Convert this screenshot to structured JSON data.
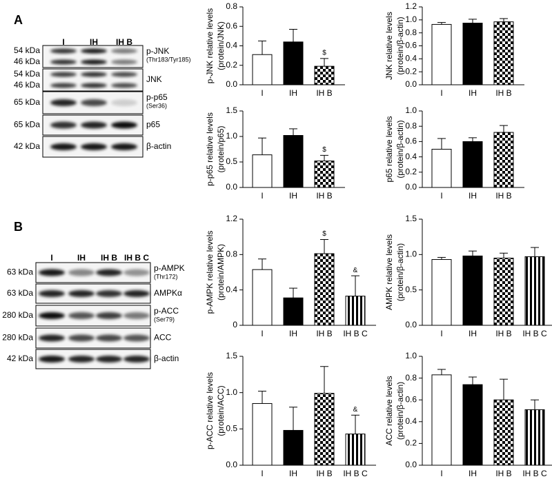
{
  "panels": [
    {
      "letter": "A",
      "lanes": [
        "I",
        "IH",
        "IH B"
      ],
      "blots": [
        {
          "kda": [
            "54 kDa",
            "46 kDa"
          ],
          "label": "p-JNK",
          "sub": "(Thr183/Tyr185)"
        },
        {
          "kda": [
            "54 kDa",
            "46 kDa"
          ],
          "label": "JNK"
        },
        {
          "kda": [
            "65 kDa"
          ],
          "label": "p-p65",
          "sub": "(Ser36)"
        },
        {
          "kda": [
            "65 kDa"
          ],
          "label": "p65"
        },
        {
          "kda": [
            "42 kDa"
          ],
          "label": "β-actin"
        }
      ]
    },
    {
      "letter": "B",
      "lanes": [
        "I",
        "IH",
        "IH B",
        "IH B C"
      ],
      "blots": [
        {
          "kda": [
            "63 kDa"
          ],
          "label": "p-AMPK",
          "sub": "(Thr172)"
        },
        {
          "kda": [
            "63 kDa"
          ],
          "label": "AMPKα"
        },
        {
          "kda": [
            "280 kDa"
          ],
          "label": "p-ACC",
          "sub": "(Ser79)"
        },
        {
          "kda": [
            "280 kDa"
          ],
          "label": "ACC"
        },
        {
          "kda": [
            "42 kDa"
          ],
          "label": "β-actin"
        }
      ]
    }
  ],
  "chart_data": [
    {
      "type": "bar",
      "ylabel": [
        "p-JNK relative levels",
        "(protein/JNK)"
      ],
      "categories": [
        "I",
        "IH",
        "IH B"
      ],
      "values": [
        0.31,
        0.44,
        0.19
      ],
      "errors": [
        0.14,
        0.13,
        0.08
      ],
      "annotations": [
        null,
        null,
        "$"
      ],
      "fills": [
        "#ffffff",
        "#000000",
        "checker"
      ],
      "ylim": [
        0,
        0.8
      ],
      "yticks": [
        {
          "value": 0,
          "label": "0.0"
        },
        0.2,
        0.4,
        0.6,
        0.8
      ]
    },
    {
      "type": "bar",
      "ylabel": [
        "JNK relative levels",
        "(protein/β-actin)"
      ],
      "categories": [
        "I",
        "IH",
        "IH B"
      ],
      "values": [
        0.93,
        0.95,
        0.97
      ],
      "errors": [
        0.03,
        0.06,
        0.05
      ],
      "annotations": [
        null,
        null,
        null
      ],
      "fills": [
        "#ffffff",
        "#000000",
        "checker"
      ],
      "ylim": [
        0,
        1.2
      ],
      "yticks": [
        {
          "value": 0,
          "label": "0.0"
        },
        0.2,
        0.4,
        0.6,
        0.8,
        {
          "value": 1,
          "label": "1.0"
        },
        1.2
      ]
    },
    {
      "type": "bar",
      "ylabel": [
        "p-p65 relative levels",
        "(protein/p65)"
      ],
      "categories": [
        "I",
        "IH",
        "IH B"
      ],
      "values": [
        0.64,
        1.02,
        0.52
      ],
      "errors": [
        0.33,
        0.13,
        0.11
      ],
      "annotations": [
        null,
        null,
        "$"
      ],
      "fills": [
        "#ffffff",
        "#000000",
        "checker"
      ],
      "ylim": [
        0,
        1.5
      ],
      "yticks": [
        {
          "value": 0,
          "label": "0.0"
        },
        0.5,
        {
          "value": 1,
          "label": "1.0"
        },
        1.5
      ]
    },
    {
      "type": "bar",
      "ylabel": [
        "p65 relative levels",
        "(protein/β-actin)"
      ],
      "categories": [
        "I",
        "IH",
        "IH B"
      ],
      "values": [
        0.5,
        0.6,
        0.72
      ],
      "errors": [
        0.14,
        0.05,
        0.09
      ],
      "annotations": [
        null,
        null,
        null
      ],
      "fills": [
        "#ffffff",
        "#000000",
        "checker"
      ],
      "ylim": [
        0,
        1
      ],
      "yticks": [
        {
          "value": 0,
          "label": "0.0"
        },
        0.2,
        0.4,
        0.6,
        0.8,
        {
          "value": 1,
          "label": "1.0"
        }
      ]
    },
    {
      "type": "bar",
      "ylabel": [
        "p-AMPK relative levels",
        "(protein/AMPK)"
      ],
      "categories": [
        "I",
        "IH",
        "IH B",
        "IH B C"
      ],
      "values": [
        0.63,
        0.31,
        0.81,
        0.33
      ],
      "errors": [
        0.12,
        0.11,
        0.16,
        0.23
      ],
      "annotations": [
        null,
        null,
        "$",
        "&"
      ],
      "fills": [
        "#ffffff",
        "#000000",
        "checker",
        "stripes"
      ],
      "ylim": [
        0,
        1.2
      ],
      "yticks": [
        0,
        0.4,
        0.8,
        1.2
      ]
    },
    {
      "type": "bar",
      "ylabel": [
        "AMPK relative levels",
        "(protein/β-actin)"
      ],
      "categories": [
        "I",
        "IH",
        "IH B",
        "IH B C"
      ],
      "values": [
        0.93,
        0.98,
        0.95,
        0.97
      ],
      "errors": [
        0.03,
        0.07,
        0.07,
        0.13
      ],
      "annotations": [
        null,
        null,
        null,
        null
      ],
      "fills": [
        "#ffffff",
        "#000000",
        "checker",
        "stripes"
      ],
      "ylim": [
        0,
        1.5
      ],
      "yticks": [
        {
          "value": 0,
          "label": "0.0"
        },
        0.5,
        {
          "value": 1,
          "label": "1.0"
        },
        1.5
      ]
    },
    {
      "type": "bar",
      "ylabel": [
        "p-ACC relative levels",
        "(protein/ACC)"
      ],
      "categories": [
        "I",
        "IH",
        "IH B",
        "IH B C"
      ],
      "values": [
        0.85,
        0.48,
        0.99,
        0.43
      ],
      "errors": [
        0.17,
        0.32,
        0.37,
        0.26
      ],
      "annotations": [
        null,
        null,
        null,
        "&"
      ],
      "fills": [
        "#ffffff",
        "#000000",
        "checker",
        "stripes"
      ],
      "ylim": [
        0,
        1.5
      ],
      "yticks": [
        {
          "value": 0,
          "label": "0.0"
        },
        0.5,
        {
          "value": 1,
          "label": "1.0"
        },
        1.5
      ]
    },
    {
      "type": "bar",
      "ylabel": [
        "ACC relative levels",
        "(protein/β-actin)"
      ],
      "categories": [
        "I",
        "IH",
        "IH B",
        "IH B C"
      ],
      "values": [
        0.83,
        0.74,
        0.6,
        0.51
      ],
      "errors": [
        0.05,
        0.07,
        0.19,
        0.09
      ],
      "annotations": [
        null,
        null,
        null,
        null
      ],
      "fills": [
        "#ffffff",
        "#000000",
        "checker",
        "stripes"
      ],
      "ylim": [
        0,
        1
      ],
      "yticks": [
        {
          "value": 0,
          "label": "0.0"
        },
        0.2,
        0.4,
        0.6,
        0.8,
        {
          "value": 1,
          "label": "1.0"
        }
      ]
    }
  ]
}
